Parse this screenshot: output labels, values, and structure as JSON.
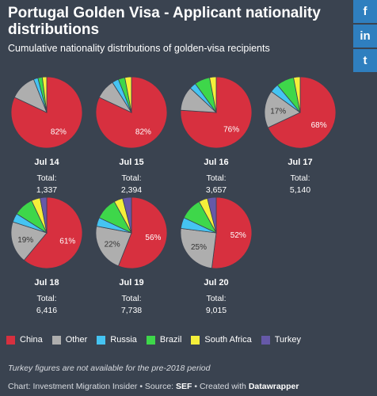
{
  "title": "Portugal Golden Visa - Applicant nationality distributions",
  "subtitle": "Cumulative nationality distributions of golden-visa recipients",
  "social": [
    "f",
    "in",
    "t"
  ],
  "colors": {
    "China": "#d7303f",
    "Other": "#aeaeae",
    "Russia": "#45c4f2",
    "Brazil": "#3ed74a",
    "South Africa": "#f5ef3a",
    "Turkey": "#6659a8"
  },
  "legend": [
    "China",
    "Other",
    "Russia",
    "Brazil",
    "South Africa",
    "Turkey"
  ],
  "note": "Turkey figures are not available for the pre-2018 period",
  "credit": {
    "prefix": "Chart: Investment Migration Insider • Source: ",
    "source": "SEF",
    "middle": " • Created with ",
    "tool": "Datawrapper"
  },
  "chart_data": {
    "type": "pie",
    "categories": [
      "China",
      "Other",
      "Russia",
      "Brazil",
      "South Africa",
      "Turkey"
    ],
    "total_label": "Total:",
    "pies": [
      {
        "label": "Jul 14",
        "total": "1,337",
        "values": [
          82,
          12,
          2,
          2,
          2,
          0
        ],
        "pct_labels": {
          "China": "82%"
        }
      },
      {
        "label": "Jul 15",
        "total": "2,394",
        "values": [
          82,
          9,
          3,
          3,
          3,
          0
        ],
        "pct_labels": {
          "China": "82%"
        }
      },
      {
        "label": "Jul 16",
        "total": "3,657",
        "values": [
          76,
          11,
          3,
          7,
          3,
          0
        ],
        "pct_labels": {
          "China": "76%"
        }
      },
      {
        "label": "Jul 17",
        "total": "5,140",
        "values": [
          68,
          17,
          4,
          8,
          3,
          0
        ],
        "pct_labels": {
          "China": "68%",
          "Other": "17%"
        }
      },
      {
        "label": "Jul 18",
        "total": "6,416",
        "values": [
          61,
          19,
          4,
          9,
          4,
          3
        ],
        "pct_labels": {
          "China": "61%",
          "Other": "19%"
        }
      },
      {
        "label": "Jul 19",
        "total": "7,738",
        "values": [
          56,
          22,
          4,
          10,
          4,
          4
        ],
        "pct_labels": {
          "China": "56%",
          "Other": "22%"
        }
      },
      {
        "label": "Jul 20",
        "total": "9,015",
        "values": [
          52,
          25,
          5,
          10,
          4,
          4
        ],
        "pct_labels": {
          "China": "52%",
          "Other": "25%"
        }
      }
    ]
  }
}
